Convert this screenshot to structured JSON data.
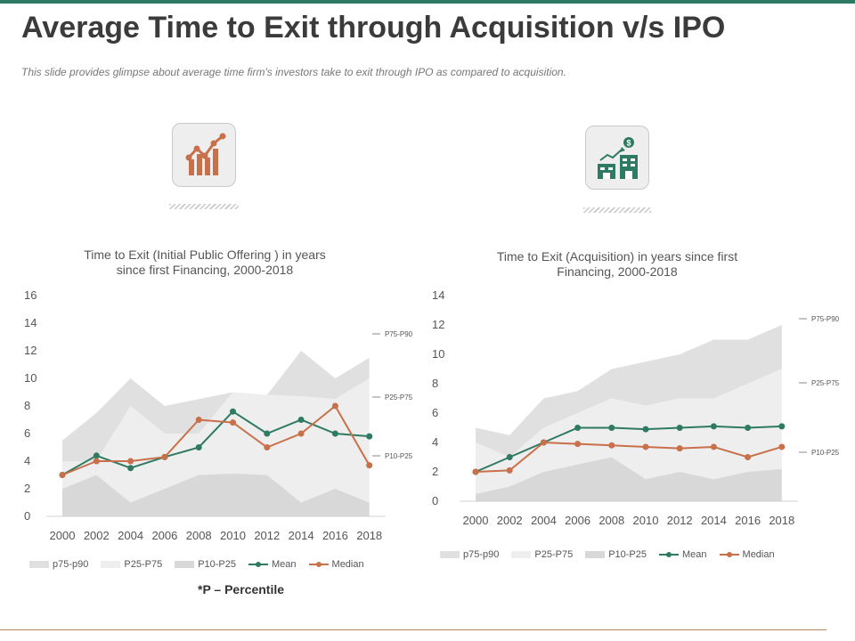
{
  "header": {
    "title": "Average Time to Exit through Acquisition v/s IPO",
    "subtitle": "This slide provides glimpse about average time firm's investors take to exit through IPO as compared to acquisition."
  },
  "icons": {
    "left": "growth-chart-icon",
    "right": "acquisition-buildings-icon"
  },
  "colors": {
    "accent_green": "#2f7a63",
    "accent_orange": "#c8704a",
    "band_outer": "#e0e0e0",
    "band_middle": "#eeeeee",
    "band_inner": "#d8d8d8"
  },
  "footnote": "*P – Percentile",
  "chart_data": [
    {
      "id": "ipo",
      "type": "area",
      "title": [
        "Time to Exit (Initial Public Offering ) in years",
        "since first Financing, 2000-2018"
      ],
      "xlabel": "",
      "ylabel": "",
      "x": [
        "2000",
        "2002",
        "2004",
        "2006",
        "2008",
        "2010",
        "2012",
        "2014",
        "2016",
        "2018"
      ],
      "ylim": [
        0,
        16
      ],
      "yticks": [
        0,
        2,
        4,
        6,
        8,
        10,
        12,
        14,
        16
      ],
      "bands": [
        {
          "name": "p75-p90",
          "lower": [
            4,
            4,
            8,
            6,
            6,
            9,
            8.8,
            8.7,
            8.5,
            10
          ],
          "upper": [
            5.5,
            7.5,
            10,
            8,
            8.5,
            9,
            8.8,
            12,
            10,
            11.5
          ]
        },
        {
          "name": "P25-P75",
          "lower": [
            2,
            3,
            1,
            2,
            3,
            3.1,
            3,
            1,
            2,
            1
          ],
          "upper": [
            4,
            4,
            8,
            6,
            6,
            9,
            8.8,
            8.7,
            8.5,
            10
          ]
        },
        {
          "name": "P10-P25",
          "lower": [
            0,
            0,
            0,
            0,
            0,
            0,
            0,
            0,
            0,
            0
          ],
          "upper": [
            2,
            3,
            1,
            2,
            3,
            3.1,
            3,
            1,
            2,
            1
          ]
        }
      ],
      "series": [
        {
          "name": "Mean",
          "values": [
            3,
            4.4,
            3.5,
            4.3,
            5,
            7.6,
            6,
            7,
            6,
            5.8
          ]
        },
        {
          "name": "Median",
          "values": [
            3,
            4,
            4,
            4.3,
            7,
            6.8,
            5,
            6,
            8,
            3.7
          ]
        }
      ],
      "annotations": [
        "P75-P90",
        "P25-P75",
        "P10-P25"
      ],
      "legend": [
        "p75-p90",
        "P25-P75",
        "P10-P25",
        "Mean",
        "Median"
      ]
    },
    {
      "id": "acq",
      "type": "area",
      "title": [
        "Time to Exit (Acquisition) in years since first",
        "Financing, 2000-2018"
      ],
      "xlabel": "",
      "ylabel": "",
      "x": [
        "2000",
        "2002",
        "2004",
        "2006",
        "2008",
        "2010",
        "2012",
        "2014",
        "2016",
        "2018"
      ],
      "ylim": [
        0,
        14
      ],
      "yticks": [
        0,
        2,
        4,
        6,
        8,
        10,
        12,
        14
      ],
      "bands": [
        {
          "name": "p75-p90",
          "lower": [
            4,
            3,
            5,
            6,
            7,
            6.5,
            7,
            7,
            8,
            9
          ],
          "upper": [
            5,
            4.5,
            7,
            7.5,
            9,
            9.5,
            10,
            11,
            11,
            12
          ]
        },
        {
          "name": "P25-P75",
          "lower": [
            0.5,
            1,
            2,
            2.5,
            3,
            1.5,
            2,
            1.5,
            2,
            2.2
          ],
          "upper": [
            4,
            3,
            5,
            6,
            7,
            6.5,
            7,
            7,
            8,
            9
          ]
        },
        {
          "name": "P10-P25",
          "lower": [
            0,
            0,
            0,
            0,
            0,
            0,
            0,
            0,
            0,
            0
          ],
          "upper": [
            0.5,
            1,
            2,
            2.5,
            3,
            1.5,
            2,
            1.5,
            2,
            2.2
          ]
        }
      ],
      "series": [
        {
          "name": "Mean",
          "values": [
            2,
            3,
            4,
            5,
            5,
            4.9,
            5,
            5.1,
            5,
            5.1
          ]
        },
        {
          "name": "Median",
          "values": [
            2,
            2.1,
            4,
            3.9,
            3.8,
            3.7,
            3.6,
            3.7,
            3,
            3.7
          ]
        }
      ],
      "annotations": [
        "P75-P90",
        "P25-P75",
        "P10-P25"
      ],
      "legend": [
        "p75-p90",
        "P25-P75",
        "P10-P25",
        "Mean",
        "Median"
      ]
    }
  ]
}
